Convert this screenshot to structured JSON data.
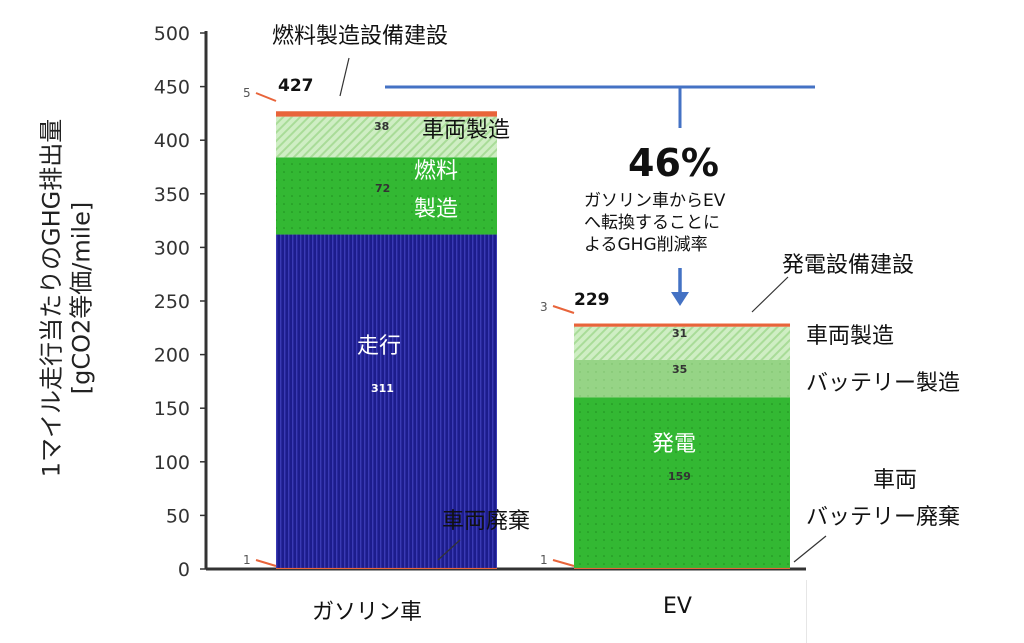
{
  "chart_data": {
    "type": "bar",
    "stacked": true,
    "ylabel": "1マイル走行当たりのGHG排出量 [gCO2等価/mile]",
    "ylabel_line1": "1マイル走行当たりのGHG排出量",
    "ylabel_line2": "[gCO2等価/mile]",
    "ylim": [
      0,
      500
    ],
    "yticks": [
      0,
      50,
      100,
      150,
      200,
      250,
      300,
      350,
      400,
      450,
      500
    ],
    "categories": [
      "ガソリン車",
      "EV"
    ],
    "bars": [
      {
        "category": "ガソリン車",
        "total": 427,
        "segments": [
          {
            "name": "車両廃棄",
            "value": 1,
            "color": "#e8643a"
          },
          {
            "name": "走行",
            "value": 311,
            "color": "#1c1c8c"
          },
          {
            "name": "燃料製造",
            "value": 72,
            "color": "#33b833"
          },
          {
            "name": "車両製造",
            "value": 38,
            "color": "#b6e3a6"
          },
          {
            "name": "燃料製造設備建設",
            "value": 5,
            "color": "#e8643a"
          }
        ]
      },
      {
        "category": "EV",
        "total": 229,
        "segments": [
          {
            "name": "車両バッテリー廃棄",
            "value": 1,
            "color": "#e8643a"
          },
          {
            "name": "発電",
            "value": 159,
            "color": "#33b833"
          },
          {
            "name": "バッテリー製造",
            "value": 35,
            "color": "#96d486"
          },
          {
            "name": "車両製造",
            "value": 31,
            "color": "#b6e3a6"
          },
          {
            "name": "発電設備建設",
            "value": 3,
            "color": "#e8643a"
          }
        ]
      }
    ],
    "reduction_label": "46%",
    "reduction_note": [
      "ガソリン車からEV",
      "へ転換することに",
      "よるGHG削減率"
    ]
  },
  "labels": {
    "gas_total": "427",
    "ev_total": "229",
    "gas_small_top": "5",
    "gas_small_bottom": "1",
    "ev_small_top": "3",
    "ev_small_bottom": "1",
    "gas_fuel_plant": "燃料製造設備建設",
    "gas_vehicle_mfg": "車両製造",
    "gas_fuel_mfg_1": "燃料",
    "gas_fuel_mfg_2": "製造",
    "gas_driving": "走行",
    "gas_disposal": "車両廃棄",
    "ev_plant": "発電設備建設",
    "ev_vehicle_mfg": "車両製造",
    "ev_battery_mfg": "バッテリー製造",
    "ev_power": "発電",
    "ev_disposal_1": "車両",
    "ev_disposal_2": "バッテリー廃棄",
    "val_38": "38",
    "val_72": "72",
    "val_311": "311",
    "val_31": "31",
    "val_35": "35",
    "val_159": "159"
  }
}
